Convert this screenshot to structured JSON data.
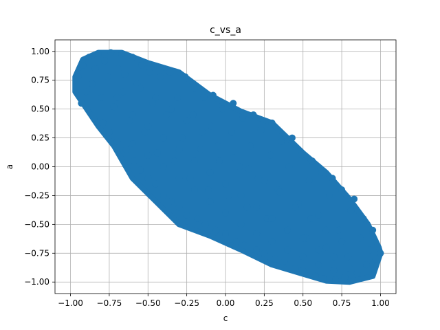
{
  "chart_data": {
    "type": "scatter",
    "title": "c_vs_a",
    "xlabel": "c",
    "ylabel": "a",
    "xlim": [
      -1.1,
      1.1
    ],
    "ylim": [
      -1.1,
      1.1
    ],
    "xticks": [
      -1.0,
      -0.75,
      -0.5,
      -0.25,
      0.0,
      0.25,
      0.5,
      0.75,
      1.0
    ],
    "yticks": [
      -1.0,
      -0.75,
      -0.5,
      -0.25,
      0.0,
      0.25,
      0.5,
      0.75,
      1.0
    ],
    "xtick_labels": [
      "−1.00",
      "−0.75",
      "−0.50",
      "−0.25",
      "0.00",
      "0.25",
      "0.50",
      "0.75",
      "1.00"
    ],
    "ytick_labels": [
      "−1.00",
      "−0.75",
      "−0.50",
      "−0.25",
      "0.00",
      "0.25",
      "0.50",
      "0.75",
      "1.00"
    ],
    "grid": true,
    "colors": {
      "points": "#1f77b4",
      "grid": "#b0b0b0",
      "axes": "#000000"
    },
    "series": [
      {
        "points": [
          [
            -0.95,
            0.78
          ],
          [
            -0.93,
            0.55
          ],
          [
            -0.92,
            0.88
          ],
          [
            -0.9,
            0.65
          ],
          [
            -0.88,
            0.95
          ],
          [
            -0.86,
            0.72
          ],
          [
            -0.85,
            0.42
          ],
          [
            -0.84,
            0.85
          ],
          [
            -0.82,
            0.98
          ],
          [
            -0.8,
            0.6
          ],
          [
            -0.79,
            0.38
          ],
          [
            -0.78,
            0.92
          ],
          [
            -0.76,
            0.78
          ],
          [
            -0.75,
            0.3
          ],
          [
            -0.74,
            0.99
          ],
          [
            -0.72,
            0.52
          ],
          [
            -0.7,
            0.22
          ],
          [
            -0.69,
            0.85
          ],
          [
            -0.67,
            0.98
          ],
          [
            -0.66,
            0.65
          ],
          [
            -0.64,
            0.15
          ],
          [
            -0.62,
            0.4
          ],
          [
            -0.6,
            0.95
          ],
          [
            -0.59,
            0.05
          ],
          [
            -0.57,
            0.72
          ],
          [
            -0.55,
            -0.03
          ],
          [
            -0.54,
            0.88
          ],
          [
            -0.52,
            0.3
          ],
          [
            -0.5,
            -0.1
          ],
          [
            -0.49,
            0.82
          ],
          [
            -0.47,
            0.55
          ],
          [
            -0.45,
            -0.15
          ],
          [
            -0.44,
            0.12
          ],
          [
            -0.42,
            0.78
          ],
          [
            -0.4,
            -0.25
          ],
          [
            -0.38,
            0.45
          ],
          [
            -0.36,
            0.82
          ],
          [
            -0.35,
            -0.3
          ],
          [
            -0.33,
            0.05
          ],
          [
            -0.31,
            0.6
          ],
          [
            -0.3,
            -0.35
          ],
          [
            -0.28,
            0.25
          ],
          [
            -0.26,
            0.78
          ],
          [
            -0.25,
            -0.42
          ],
          [
            -0.23,
            -0.1
          ],
          [
            -0.21,
            0.45
          ],
          [
            -0.2,
            0.68
          ],
          [
            -0.18,
            -0.45
          ],
          [
            -0.16,
            0.15
          ],
          [
            -0.14,
            0.6
          ],
          [
            -0.13,
            -0.5
          ],
          [
            -0.11,
            -0.2
          ],
          [
            -0.09,
            0.35
          ],
          [
            -0.08,
            0.62
          ],
          [
            -0.06,
            -0.55
          ],
          [
            -0.04,
            0.05
          ],
          [
            -0.02,
            0.5
          ],
          [
            0.0,
            -0.58
          ],
          [
            0.02,
            -0.25
          ],
          [
            0.04,
            0.3
          ],
          [
            0.05,
            0.55
          ],
          [
            0.07,
            -0.65
          ],
          [
            0.09,
            0.0
          ],
          [
            0.11,
            0.42
          ],
          [
            0.12,
            -0.68
          ],
          [
            0.14,
            -0.35
          ],
          [
            0.16,
            0.18
          ],
          [
            0.18,
            0.45
          ],
          [
            0.2,
            -0.72
          ],
          [
            0.21,
            -0.1
          ],
          [
            0.23,
            0.32
          ],
          [
            0.25,
            -0.75
          ],
          [
            0.27,
            -0.45
          ],
          [
            0.29,
            0.1
          ],
          [
            0.3,
            0.38
          ],
          [
            0.32,
            -0.8
          ],
          [
            0.34,
            -0.2
          ],
          [
            0.36,
            0.22
          ],
          [
            0.38,
            -0.82
          ],
          [
            0.4,
            -0.55
          ],
          [
            0.41,
            0.0
          ],
          [
            0.43,
            0.25
          ],
          [
            0.45,
            -0.88
          ],
          [
            0.47,
            -0.32
          ],
          [
            0.49,
            0.1
          ],
          [
            0.5,
            -0.9
          ],
          [
            0.52,
            -0.62
          ],
          [
            0.54,
            -0.12
          ],
          [
            0.56,
            0.05
          ],
          [
            0.58,
            -0.95
          ],
          [
            0.6,
            -0.42
          ],
          [
            0.62,
            -0.05
          ],
          [
            0.63,
            -0.97
          ],
          [
            0.65,
            -0.7
          ],
          [
            0.67,
            -0.25
          ],
          [
            0.69,
            -0.1
          ],
          [
            0.71,
            -0.98
          ],
          [
            0.73,
            -0.55
          ],
          [
            0.75,
            -0.2
          ],
          [
            0.77,
            -0.96
          ],
          [
            0.79,
            -0.78
          ],
          [
            0.81,
            -0.38
          ],
          [
            0.83,
            -0.28
          ],
          [
            0.85,
            -0.92
          ],
          [
            0.87,
            -0.62
          ],
          [
            0.89,
            -0.45
          ],
          [
            0.91,
            -0.85
          ],
          [
            0.93,
            -0.72
          ],
          [
            0.95,
            -0.55
          ],
          [
            0.97,
            -0.8
          ],
          [
            1.0,
            -0.75
          ],
          [
            -0.7,
            0.6
          ],
          [
            -0.6,
            0.45
          ],
          [
            -0.5,
            0.35
          ],
          [
            -0.4,
            0.25
          ],
          [
            -0.3,
            0.15
          ],
          [
            -0.2,
            0.05
          ],
          [
            -0.1,
            -0.05
          ],
          [
            0.0,
            -0.15
          ],
          [
            0.1,
            -0.25
          ],
          [
            0.2,
            -0.35
          ],
          [
            0.3,
            -0.45
          ],
          [
            0.4,
            -0.55
          ],
          [
            0.5,
            -0.62
          ],
          [
            0.6,
            -0.72
          ],
          [
            0.7,
            -0.78
          ],
          [
            -0.65,
            0.8
          ],
          [
            -0.55,
            0.68
          ],
          [
            -0.45,
            0.6
          ],
          [
            -0.35,
            0.5
          ],
          [
            -0.25,
            0.4
          ],
          [
            -0.15,
            0.3
          ],
          [
            -0.05,
            0.18
          ],
          [
            0.05,
            0.08
          ],
          [
            0.15,
            -0.02
          ],
          [
            0.25,
            -0.12
          ],
          [
            0.35,
            -0.22
          ],
          [
            0.45,
            -0.35
          ],
          [
            0.55,
            -0.45
          ],
          [
            0.65,
            -0.55
          ],
          [
            0.75,
            -0.65
          ],
          [
            -0.6,
            0.2
          ],
          [
            -0.5,
            0.1
          ],
          [
            -0.4,
            0.0
          ],
          [
            -0.3,
            -0.1
          ],
          [
            -0.2,
            -0.2
          ],
          [
            -0.1,
            -0.3
          ],
          [
            0.0,
            -0.4
          ],
          [
            0.1,
            -0.5
          ],
          [
            0.2,
            -0.58
          ],
          [
            0.3,
            -0.65
          ],
          [
            0.4,
            -0.72
          ],
          [
            0.5,
            -0.78
          ],
          [
            0.6,
            -0.85
          ],
          [
            0.7,
            -0.9
          ],
          [
            0.8,
            -0.88
          ]
        ]
      }
    ]
  }
}
